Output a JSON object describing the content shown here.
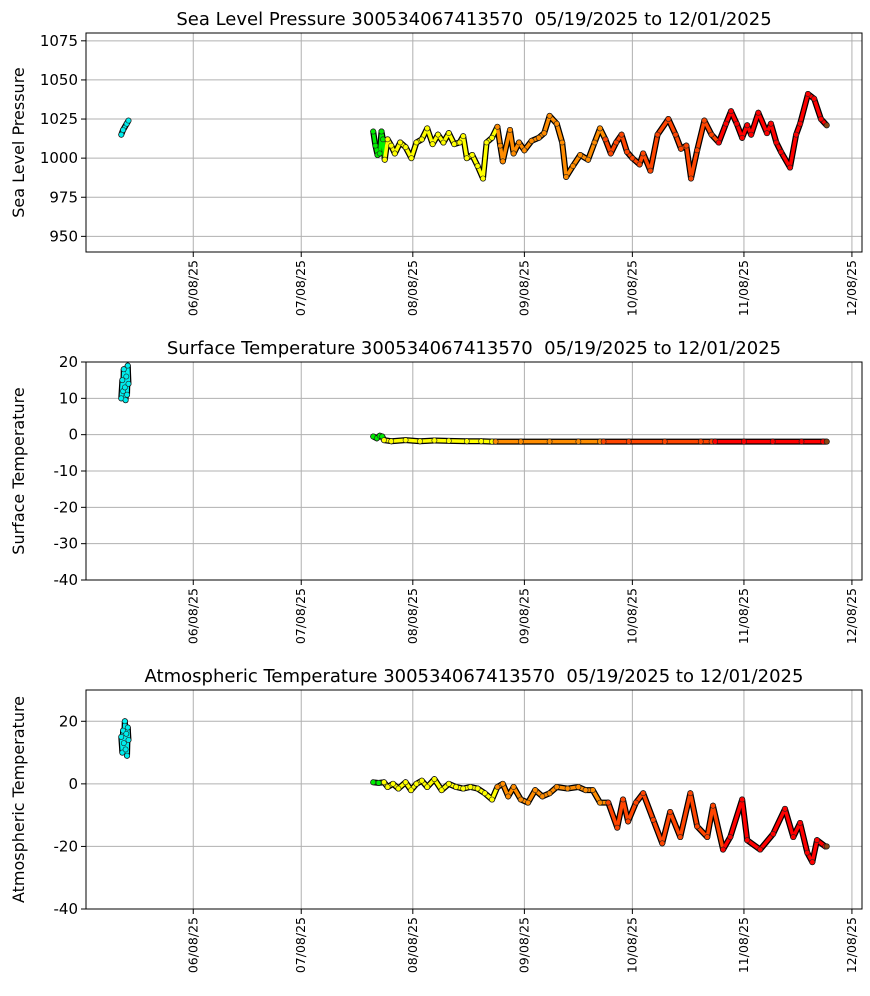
{
  "chart_data": [
    {
      "type": "scatter",
      "title": "Sea Level Pressure 300534067413570  05/19/2025 to 12/01/2025",
      "xlabel": "",
      "ylabel": "Sea Level Pressure",
      "ylim": [
        940,
        1080
      ],
      "yticks": [
        950,
        975,
        1000,
        1025,
        1050,
        1075
      ],
      "grid": true,
      "points": [
        [
          139,
          1015
        ],
        [
          139.5,
          1018
        ],
        [
          140.5,
          1022
        ],
        [
          141,
          1024
        ],
        [
          209,
          1017
        ],
        [
          209.6,
          1008
        ],
        [
          210.2,
          1002
        ],
        [
          210.8,
          1003
        ],
        [
          211.3,
          1017
        ],
        [
          211.7,
          1012
        ],
        [
          212.2,
          999
        ],
        [
          213,
          1012
        ],
        [
          214,
          1008
        ],
        [
          215,
          1003
        ],
        [
          216.5,
          1010
        ],
        [
          218,
          1007
        ],
        [
          219.6,
          1000
        ],
        [
          221,
          1010
        ],
        [
          222.5,
          1012
        ],
        [
          224,
          1019
        ],
        [
          225.5,
          1009
        ],
        [
          227,
          1015
        ],
        [
          228.5,
          1010
        ],
        [
          230,
          1016
        ],
        [
          231.5,
          1009
        ],
        [
          233,
          1010
        ],
        [
          234,
          1014
        ],
        [
          235,
          1000
        ],
        [
          236.5,
          1002
        ],
        [
          238,
          995
        ],
        [
          239.5,
          987
        ],
        [
          240.5,
          1010
        ],
        [
          242,
          1013
        ],
        [
          243.5,
          1020
        ],
        [
          244.3,
          1008
        ],
        [
          245,
          998
        ],
        [
          247,
          1018
        ],
        [
          248,
          1003
        ],
        [
          249.5,
          1010
        ],
        [
          251,
          1005
        ],
        [
          253,
          1011
        ],
        [
          255,
          1013
        ],
        [
          256.5,
          1016
        ],
        [
          258,
          1027
        ],
        [
          260,
          1022
        ],
        [
          261.5,
          1010
        ],
        [
          262.6,
          988
        ],
        [
          264.5,
          995
        ],
        [
          266.5,
          1002
        ],
        [
          268.7,
          999
        ],
        [
          270.5,
          1010
        ],
        [
          272,
          1019
        ],
        [
          273.5,
          1012
        ],
        [
          275,
          1003
        ],
        [
          276.5,
          1010
        ],
        [
          278,
          1015
        ],
        [
          279.5,
          1004
        ],
        [
          281,
          1000
        ],
        [
          283,
          996
        ],
        [
          284,
          1003
        ],
        [
          286,
          992
        ],
        [
          288,
          1015
        ],
        [
          291,
          1025
        ],
        [
          293,
          1015
        ],
        [
          294.5,
          1006
        ],
        [
          296,
          1008
        ],
        [
          297.3,
          987
        ],
        [
          299,
          1005
        ],
        [
          301,
          1024
        ],
        [
          303,
          1015
        ],
        [
          305,
          1010
        ],
        [
          307,
          1022
        ],
        [
          308.4,
          1030
        ],
        [
          310,
          1022
        ],
        [
          311.5,
          1013
        ],
        [
          312.9,
          1021
        ],
        [
          314,
          1015
        ],
        [
          316,
          1029
        ],
        [
          318.4,
          1016
        ],
        [
          319.5,
          1022
        ],
        [
          321,
          1010
        ],
        [
          322.3,
          1004
        ],
        [
          324.8,
          994
        ],
        [
          326.5,
          1015
        ],
        [
          327.6,
          1022
        ],
        [
          329.8,
          1041
        ],
        [
          331.5,
          1038
        ],
        [
          333.4,
          1025
        ],
        [
          335,
          1021
        ]
      ]
    },
    {
      "type": "scatter",
      "title": "Surface Temperature 300534067413570  05/19/2025 to 12/01/2025",
      "xlabel": "",
      "ylabel": "Surface Temperature",
      "ylim": [
        -40,
        20
      ],
      "yticks": [
        -40,
        -30,
        -20,
        -10,
        0,
        10,
        20
      ],
      "grid": true,
      "points": [
        [
          139,
          10
        ],
        [
          139.3,
          15
        ],
        [
          139.5,
          12
        ],
        [
          139.7,
          18
        ],
        [
          140,
          13
        ],
        [
          140.2,
          9.5
        ],
        [
          140.4,
          16
        ],
        [
          140.6,
          11
        ],
        [
          140.8,
          19
        ],
        [
          141,
          14
        ],
        [
          209,
          -0.5
        ],
        [
          210,
          -1
        ],
        [
          210.8,
          -0.3
        ],
        [
          211.5,
          -0.5
        ],
        [
          212,
          -1.5
        ],
        [
          214,
          -1.8
        ],
        [
          218,
          -1.5
        ],
        [
          222,
          -1.8
        ],
        [
          226,
          -1.6
        ],
        [
          230,
          -1.7
        ],
        [
          235,
          -1.8
        ],
        [
          239,
          -1.8
        ],
        [
          242,
          -1.9
        ],
        [
          243,
          -1.9
        ],
        [
          250,
          -1.9
        ],
        [
          258,
          -1.9
        ],
        [
          266,
          -1.9
        ],
        [
          272,
          -1.9
        ],
        [
          273,
          -1.9
        ],
        [
          280,
          -1.9
        ],
        [
          290,
          -1.9
        ],
        [
          300,
          -1.9
        ],
        [
          303,
          -1.9
        ],
        [
          304,
          -1.9
        ],
        [
          312,
          -1.9
        ],
        [
          320,
          -1.9
        ],
        [
          328,
          -1.9
        ],
        [
          334,
          -1.9
        ],
        [
          335,
          -1.9
        ]
      ]
    },
    {
      "type": "scatter",
      "title": "Atmospheric Temperature 300534067413570  05/19/2025 to 12/01/2025",
      "xlabel": "",
      "ylabel": "Atmospheric Temperature",
      "ylim": [
        -40,
        30
      ],
      "yticks": [
        -40,
        -20,
        0,
        20
      ],
      "grid": true,
      "points": [
        [
          139,
          15
        ],
        [
          139.3,
          10
        ],
        [
          139.5,
          17
        ],
        [
          139.7,
          13
        ],
        [
          140,
          20
        ],
        [
          140.2,
          11
        ],
        [
          140.4,
          16
        ],
        [
          140.6,
          9
        ],
        [
          140.8,
          18
        ],
        [
          141,
          14
        ],
        [
          209,
          0.5
        ],
        [
          210.5,
          0.3
        ],
        [
          212,
          0.5
        ],
        [
          213,
          -1
        ],
        [
          214.5,
          0
        ],
        [
          216,
          -1.5
        ],
        [
          218,
          0.5
        ],
        [
          219.5,
          -2
        ],
        [
          221,
          0
        ],
        [
          222.5,
          1
        ],
        [
          224,
          -1
        ],
        [
          226,
          1.5
        ],
        [
          228,
          -2
        ],
        [
          230,
          0
        ],
        [
          232,
          -1
        ],
        [
          234,
          -1.5
        ],
        [
          236,
          -1
        ],
        [
          238,
          -1.5
        ],
        [
          240,
          -3
        ],
        [
          242,
          -5
        ],
        [
          243.5,
          -1
        ],
        [
          245,
          0
        ],
        [
          246.5,
          -4
        ],
        [
          248,
          -1
        ],
        [
          250,
          -5
        ],
        [
          252,
          -6
        ],
        [
          254,
          -2
        ],
        [
          256,
          -4
        ],
        [
          258,
          -3
        ],
        [
          260,
          -1
        ],
        [
          263,
          -1.5
        ],
        [
          266,
          -1
        ],
        [
          268,
          -2
        ],
        [
          270,
          -2
        ],
        [
          272,
          -6
        ],
        [
          274.3,
          -6
        ],
        [
          276.8,
          -14
        ],
        [
          278.4,
          -5
        ],
        [
          279.8,
          -12
        ],
        [
          282,
          -6
        ],
        [
          284,
          -3
        ],
        [
          286.8,
          -11.5
        ],
        [
          289.3,
          -19
        ],
        [
          291.5,
          -9
        ],
        [
          294.3,
          -17
        ],
        [
          297.1,
          -3
        ],
        [
          299,
          -13.6
        ],
        [
          301.8,
          -17
        ],
        [
          303.4,
          -7
        ],
        [
          306.2,
          -21
        ],
        [
          308.2,
          -17
        ],
        [
          311.5,
          -5
        ],
        [
          312.9,
          -18
        ],
        [
          316.5,
          -21
        ],
        [
          320.1,
          -16
        ],
        [
          323.4,
          -8
        ],
        [
          325.7,
          -17
        ],
        [
          327.6,
          -12.5
        ],
        [
          329.6,
          -22
        ],
        [
          331,
          -25
        ],
        [
          332.3,
          -18
        ],
        [
          334.6,
          -20
        ],
        [
          335,
          -20
        ]
      ]
    }
  ],
  "x_axis": {
    "domain_doy": [
      129.2,
      344.8
    ],
    "ticks": [
      {
        "doy": 159,
        "label": "06/08/25"
      },
      {
        "doy": 189,
        "label": "07/08/25"
      },
      {
        "doy": 220,
        "label": "08/08/25"
      },
      {
        "doy": 251,
        "label": "09/08/25"
      },
      {
        "doy": 281,
        "label": "10/08/25"
      },
      {
        "doy": 312,
        "label": "11/08/25"
      },
      {
        "doy": 342,
        "label": "12/08/25"
      }
    ]
  },
  "colors_by_period": [
    {
      "from": 0,
      "to": 200,
      "color": "#00eeee"
    },
    {
      "from": 200,
      "to": 212,
      "color": "#00ee00"
    },
    {
      "from": 212,
      "to": 243,
      "color": "#ffff00"
    },
    {
      "from": 243,
      "to": 273,
      "color": "#ff8c00"
    },
    {
      "from": 273,
      "to": 304,
      "color": "#ff4500"
    },
    {
      "from": 304,
      "to": 335,
      "color": "#ff0000"
    },
    {
      "from": 335,
      "to": 400,
      "color": "#8b4513"
    }
  ]
}
